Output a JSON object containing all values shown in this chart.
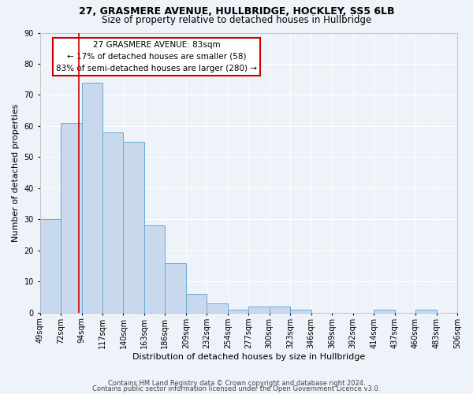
{
  "title": "27, GRASMERE AVENUE, HULLBRIDGE, HOCKLEY, SS5 6LB",
  "subtitle": "Size of property relative to detached houses in Hullbridge",
  "xlabel": "Distribution of detached houses by size in Hullbridge",
  "ylabel": "Number of detached properties",
  "bar_color": "#c8d9ee",
  "bar_edge_color": "#6aaad4",
  "bar_heights": [
    30,
    61,
    74,
    58,
    55,
    28,
    16,
    6,
    3,
    1,
    2,
    2,
    1,
    0,
    0,
    0,
    1,
    0,
    1,
    0
  ],
  "bin_labels": [
    "49sqm",
    "72sqm",
    "94sqm",
    "117sqm",
    "140sqm",
    "163sqm",
    "186sqm",
    "209sqm",
    "232sqm",
    "254sqm",
    "277sqm",
    "300sqm",
    "323sqm",
    "346sqm",
    "369sqm",
    "392sqm",
    "414sqm",
    "437sqm",
    "460sqm",
    "483sqm",
    "506sqm"
  ],
  "annotation_title": "27 GRASMERE AVENUE: 83sqm",
  "annotation_line1": "← 17% of detached houses are smaller (58)",
  "annotation_line2": "83% of semi-detached houses are larger (280) →",
  "annotation_color": "#cc0000",
  "red_line_x": 1.35,
  "ylim": [
    0,
    90
  ],
  "yticks": [
    0,
    10,
    20,
    30,
    40,
    50,
    60,
    70,
    80,
    90
  ],
  "footer_line1": "Contains HM Land Registry data © Crown copyright and database right 2024.",
  "footer_line2": "Contains public sector information licensed under the Open Government Licence v3.0.",
  "background_color": "#eef2f9",
  "grid_color": "#ffffff",
  "title_fontsize": 9,
  "subtitle_fontsize": 8.5,
  "tick_fontsize": 7,
  "ylabel_fontsize": 8,
  "xlabel_fontsize": 8,
  "annotation_fontsize": 7.5,
  "footer_fontsize": 6
}
